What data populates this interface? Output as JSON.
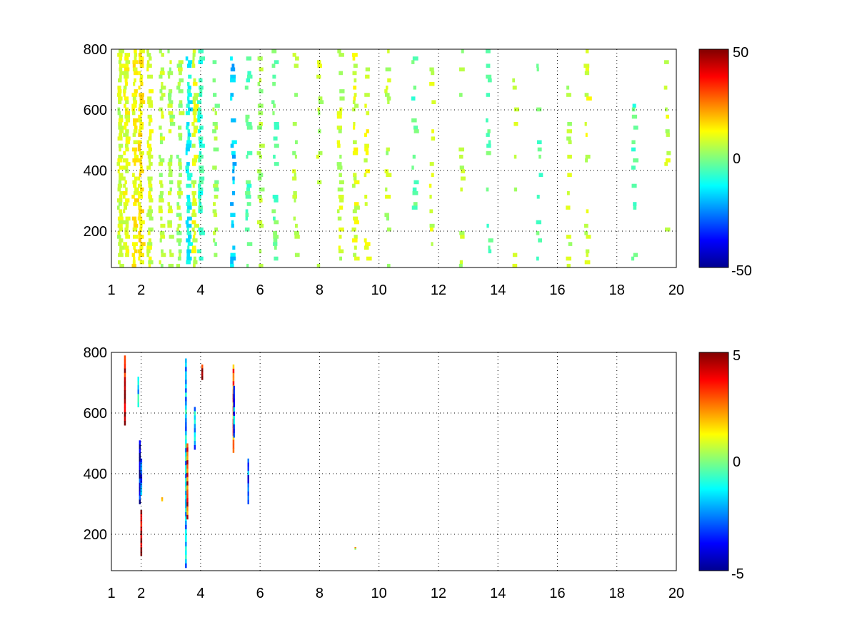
{
  "chart_data": [
    {
      "type": "heatmap",
      "title": "",
      "xlabel": "",
      "ylabel": "",
      "xlim": [
        1,
        20
      ],
      "ylim": [
        80,
        800
      ],
      "xticks": [
        1,
        2,
        4,
        6,
        8,
        10,
        12,
        14,
        16,
        18,
        20
      ],
      "xtick_labels": [
        "1",
        "2",
        "4",
        "6",
        "8",
        "10",
        "12",
        "14",
        "16",
        "18",
        "20"
      ],
      "yticks": [
        200,
        400,
        600,
        800
      ],
      "ytick_labels": [
        "200",
        "400",
        "600",
        "800"
      ],
      "grid": true,
      "colormap": "jet",
      "colorbar": {
        "clim": [
          -50,
          50
        ],
        "tick_labels": [
          "50",
          "0",
          "-50"
        ]
      },
      "sparse_cells_description_values": {
        "columns": [
          {
            "x": 1.3,
            "density": 0.9,
            "level": 8
          },
          {
            "x": 1.5,
            "density": 0.85,
            "level": 10
          },
          {
            "x": 1.8,
            "density": 0.8,
            "level": 12
          },
          {
            "x": 2.0,
            "density": 0.9,
            "level": 14
          },
          {
            "x": 2.3,
            "density": 0.75,
            "level": 8
          },
          {
            "x": 2.7,
            "density": 0.7,
            "level": 6
          },
          {
            "x": 3.0,
            "density": 0.65,
            "level": 5
          },
          {
            "x": 3.3,
            "density": 0.6,
            "level": 4
          },
          {
            "x": 3.6,
            "density": 0.75,
            "level": -12
          },
          {
            "x": 3.8,
            "density": 0.65,
            "level": 9
          },
          {
            "x": 4.0,
            "density": 0.55,
            "level": -8
          },
          {
            "x": 4.5,
            "density": 0.45,
            "level": 3
          },
          {
            "x": 5.1,
            "density": 0.55,
            "level": -18
          },
          {
            "x": 5.6,
            "density": 0.4,
            "level": -5
          },
          {
            "x": 6.0,
            "density": 0.4,
            "level": 4
          },
          {
            "x": 6.5,
            "density": 0.35,
            "level": -3
          },
          {
            "x": 7.2,
            "density": 0.3,
            "level": 5
          },
          {
            "x": 8.0,
            "density": 0.3,
            "level": 6
          },
          {
            "x": 8.7,
            "density": 0.35,
            "level": 7
          },
          {
            "x": 9.2,
            "density": 0.4,
            "level": 9
          },
          {
            "x": 9.6,
            "density": 0.45,
            "level": 10
          },
          {
            "x": 10.3,
            "density": 0.3,
            "level": 6
          },
          {
            "x": 11.2,
            "density": 0.25,
            "level": -4
          },
          {
            "x": 11.8,
            "density": 0.25,
            "level": 7
          },
          {
            "x": 12.8,
            "density": 0.2,
            "level": 5
          },
          {
            "x": 13.7,
            "density": 0.2,
            "level": -3
          },
          {
            "x": 14.6,
            "density": 0.22,
            "level": 8
          },
          {
            "x": 15.4,
            "density": 0.2,
            "level": -4
          },
          {
            "x": 16.4,
            "density": 0.2,
            "level": 6
          },
          {
            "x": 17.0,
            "density": 0.22,
            "level": 9
          },
          {
            "x": 18.6,
            "density": 0.2,
            "level": -5
          },
          {
            "x": 19.7,
            "density": 0.2,
            "level": 7
          }
        ]
      }
    },
    {
      "type": "heatmap",
      "title": "",
      "xlabel": "",
      "ylabel": "",
      "xlim": [
        1,
        20
      ],
      "ylim": [
        80,
        800
      ],
      "xticks": [
        1,
        2,
        4,
        6,
        8,
        10,
        12,
        14,
        16,
        18,
        20
      ],
      "xtick_labels": [
        "1",
        "2",
        "4",
        "6",
        "8",
        "10",
        "12",
        "14",
        "16",
        "18",
        "20"
      ],
      "yticks": [
        200,
        400,
        600,
        800
      ],
      "ytick_labels": [
        "200",
        "400",
        "600",
        "800"
      ],
      "grid": true,
      "colormap": "jet",
      "colorbar": {
        "clim": [
          -5,
          5
        ],
        "tick_labels": [
          "5",
          "0",
          "-5"
        ]
      },
      "segments": [
        {
          "x": 1.45,
          "y0": 560,
          "y1": 790,
          "level": 4.5
        },
        {
          "x": 1.9,
          "y0": 620,
          "y1": 720,
          "level": -1.5
        },
        {
          "x": 1.95,
          "y0": 300,
          "y1": 510,
          "level": -4.2
        },
        {
          "x": 2.0,
          "y0": 130,
          "y1": 280,
          "level": 4.0
        },
        {
          "x": 2.0,
          "y0": 330,
          "y1": 450,
          "level": -3.0
        },
        {
          "x": 3.5,
          "y0": 90,
          "y1": 780,
          "level": -1.8
        },
        {
          "x": 3.55,
          "y0": 250,
          "y1": 500,
          "level": 3.5
        },
        {
          "x": 3.8,
          "y0": 480,
          "y1": 620,
          "level": -2.0
        },
        {
          "x": 4.05,
          "y0": 710,
          "y1": 760,
          "level": 4.5
        },
        {
          "x": 5.1,
          "y0": 470,
          "y1": 760,
          "level": 3.0
        },
        {
          "x": 5.12,
          "y0": 520,
          "y1": 690,
          "level": -2.5
        },
        {
          "x": 5.6,
          "y0": 300,
          "y1": 450,
          "level": -3.0
        },
        {
          "x": 2.7,
          "y0": 310,
          "y1": 322,
          "level": 1.5
        },
        {
          "x": 9.2,
          "y0": 150,
          "y1": 158,
          "level": 1.5
        }
      ]
    }
  ]
}
